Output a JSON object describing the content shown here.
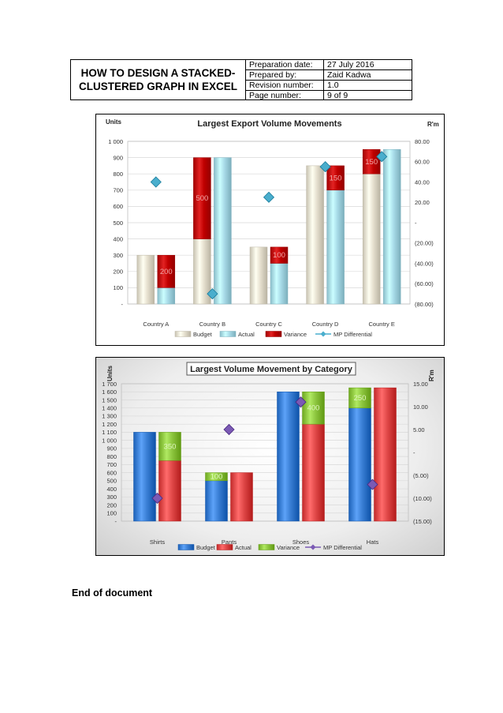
{
  "header": {
    "title": "HOW TO DESIGN A STACKED-CLUSTERED GRAPH IN EXCEL",
    "rows": [
      {
        "label": "Preparation date:",
        "value": "27 July 2016"
      },
      {
        "label": "Prepared by:",
        "value": "Zaid Kadwa"
      },
      {
        "label": "Revision number:",
        "value": "1.0"
      },
      {
        "label": "Page number:",
        "value": "9 of 9"
      }
    ]
  },
  "footer_text": "End of document",
  "chart_data": [
    {
      "type": "bar",
      "title": "Largest Export Volume Movements",
      "ylabel": "Units",
      "y2label": "R'm",
      "categories": [
        "Country A",
        "Country B",
        "Country C",
        "Country D",
        "Country E"
      ],
      "ylim": [
        0,
        1000
      ],
      "y_ticks": [
        "-",
        "100",
        "200",
        "300",
        "400",
        "500",
        "600",
        "700",
        "800",
        "900",
        "1 000"
      ],
      "y2lim": [
        -80,
        80
      ],
      "y2_ticks": [
        "(80.00)",
        "(60.00)",
        "(40.00)",
        "(20.00)",
        "-",
        "20.00",
        "40.00",
        "60.00",
        "80.00"
      ],
      "series": [
        {
          "name": "Budget",
          "values": [
            300,
            400,
            350,
            850,
            800
          ]
        },
        {
          "name": "Actual",
          "values": [
            100,
            900,
            250,
            700,
            950
          ]
        },
        {
          "name": "Variance",
          "values": [
            200,
            500,
            100,
            150,
            150
          ]
        },
        {
          "name": "MP Differential",
          "values": [
            40,
            -70,
            25,
            55,
            65
          ]
        }
      ],
      "variance_stack": [
        "actual",
        "budget",
        "actual",
        "actual",
        "budget"
      ],
      "variance_labels": [
        "200",
        "500",
        "100",
        "150",
        "150"
      ],
      "colors": {
        "budget": "#e6e0cf",
        "actual": "#a8dbe8",
        "variance": "#c00000",
        "mp": "#4aaecd"
      },
      "legend": "bottom"
    },
    {
      "type": "bar",
      "title": "Largest Volume Movement by Category",
      "ylabel": "Units",
      "y2label": "R'm",
      "categories": [
        "Shirts",
        "Pants",
        "Shoes",
        "Hats"
      ],
      "ylim": [
        0,
        1700
      ],
      "y_ticks": [
        "-",
        "100",
        "200",
        "300",
        "400",
        "500",
        "600",
        "700",
        "800",
        "900",
        "1 000",
        "1 100",
        "1 200",
        "1 300",
        "1 400",
        "1 500",
        "1 600",
        "1 700"
      ],
      "y2lim": [
        -15,
        15
      ],
      "y2_ticks": [
        "(15.00)",
        "(10.00)",
        "(5.00)",
        "-",
        "5.00",
        "10.00",
        "15.00"
      ],
      "series": [
        {
          "name": "Budget",
          "values": [
            1100,
            500,
            1600,
            1400
          ]
        },
        {
          "name": "Actual",
          "values": [
            750,
            600,
            1200,
            1650
          ]
        },
        {
          "name": "Variance",
          "values": [
            350,
            100,
            400,
            250
          ]
        },
        {
          "name": "MP Differential",
          "values": [
            -10,
            5,
            11,
            -7
          ]
        }
      ],
      "variance_stack": [
        "actual",
        "budget",
        "actual",
        "budget"
      ],
      "variance_labels": [
        "350",
        "100",
        "400",
        "250"
      ],
      "colors": {
        "budget": "#3a7fd5",
        "actual": "#e04848",
        "variance": "#8dc63f",
        "mp": "#7b5ab4"
      },
      "legend": "bottom"
    }
  ]
}
